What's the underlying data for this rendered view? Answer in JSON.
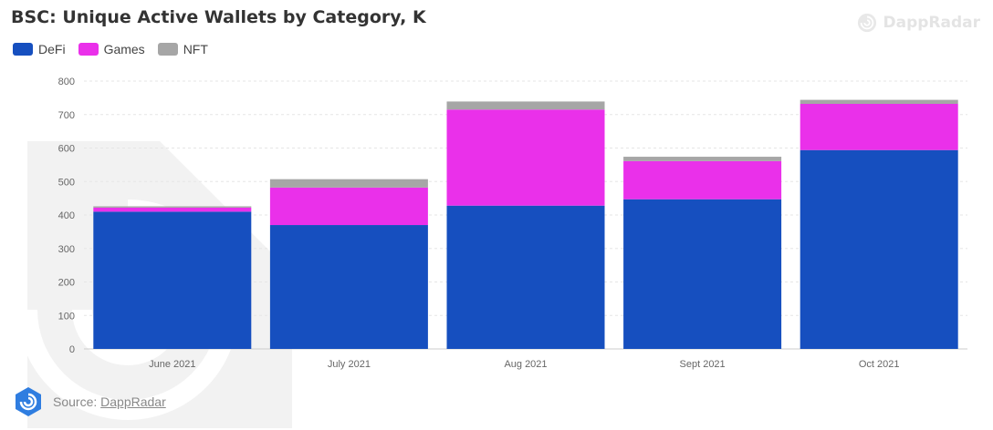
{
  "brand": {
    "name": "DappRadar"
  },
  "source": {
    "prefix": "Source:",
    "link_text": "DappRadar"
  },
  "colors": {
    "DeFi": "#164fbf",
    "Games": "#ea30ea",
    "NFT": "#a6a6a6"
  },
  "chart_data": {
    "type": "bar",
    "stacked": true,
    "title": "BSC: Unique Active Wallets by Category, K",
    "xlabel": "",
    "ylabel": "",
    "ylim": [
      0,
      800
    ],
    "yticks": [
      0,
      100,
      200,
      300,
      400,
      500,
      600,
      700,
      800
    ],
    "grid": true,
    "legend_position": "top-left",
    "categories": [
      "June 2021",
      "July 2021",
      "Aug 2021",
      "Sept 2021",
      "Oct 2021"
    ],
    "series": [
      {
        "name": "DeFi",
        "color": "#164fbf",
        "values": [
          410,
          370,
          428,
          447,
          594
        ]
      },
      {
        "name": "Games",
        "color": "#ea30ea",
        "values": [
          12,
          112,
          287,
          114,
          138
        ]
      },
      {
        "name": "NFT",
        "color": "#a6a6a6",
        "values": [
          4,
          25,
          24,
          13,
          12
        ]
      }
    ]
  }
}
